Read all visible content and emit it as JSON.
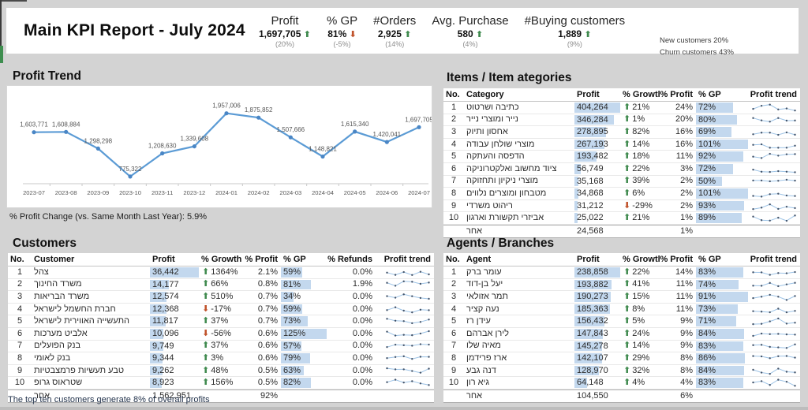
{
  "header": {
    "title": "Main KPI Report - July 2024",
    "kpis": [
      {
        "id": "profit",
        "label": "Profit",
        "value": "1,697,705",
        "delta": "(20%)",
        "dir": "up"
      },
      {
        "id": "gp",
        "label": "% GP",
        "value": "81%",
        "delta": "(-5%)",
        "dir": "down"
      },
      {
        "id": "orders",
        "label": "#Orders",
        "value": "2,925",
        "delta": "(14%)",
        "dir": "up"
      },
      {
        "id": "avg-purchase",
        "label": "Avg. Purchase",
        "value": "580",
        "delta": "(4%)",
        "dir": "up"
      },
      {
        "id": "buying-customers",
        "label": "#Buying customers",
        "value": "1,889",
        "delta": "(9%)",
        "dir": "up"
      }
    ],
    "extras": [
      "New customers 20%",
      "Churn customers 43%"
    ]
  },
  "chart_data": {
    "type": "line",
    "title": "Profit Trend",
    "x": [
      "2023-07",
      "2023-08",
      "2023-09",
      "2023-10",
      "2023-11",
      "2023-12",
      "2024-01",
      "2024-02",
      "2024-03",
      "2024-04",
      "2024-05",
      "2024-06",
      "2024-07"
    ],
    "values": [
      1603771,
      1608884,
      1298298,
      775322,
      1208630,
      1339608,
      1957006,
      1875852,
      1507666,
      1148821,
      1615340,
      1420041,
      1697705
    ],
    "ylim": [
      700000,
      2100000
    ],
    "grid": false,
    "legend": "none",
    "footnote": "% Profit Change (vs. Same Month Last Year): 5.9%"
  },
  "items_table": {
    "title": "Items / Item ategories",
    "columns": [
      "No.",
      "Category",
      "Profit",
      "% Growth",
      "% Profit",
      "% GP",
      "Profit trend"
    ],
    "rows": [
      {
        "no": "1",
        "name": "כתיבה ושרטוט",
        "profit": 404264,
        "profit_text": "404,264",
        "growth_dir": "up",
        "growth": "21%",
        "profit_pct": "24%",
        "gp": 72,
        "gp_text": "72%"
      },
      {
        "no": "2",
        "name": "נייר ומוצרי נייר",
        "profit": 346284,
        "profit_text": "346,284",
        "growth_dir": "up",
        "growth": "1%",
        "profit_pct": "20%",
        "gp": 80,
        "gp_text": "80%"
      },
      {
        "no": "3",
        "name": "אחסון ותיוק",
        "profit": 278895,
        "profit_text": "278,895",
        "growth_dir": "up",
        "growth": "82%",
        "profit_pct": "16%",
        "gp": 69,
        "gp_text": "69%"
      },
      {
        "no": "4",
        "name": "מוצרי שולחן עבודה",
        "profit": 267193,
        "profit_text": "267,193",
        "growth_dir": "up",
        "growth": "14%",
        "profit_pct": "16%",
        "gp": 101,
        "gp_text": "101%"
      },
      {
        "no": "5",
        "name": "הדפסה והעתקה",
        "profit": 193482,
        "profit_text": "193,482",
        "growth_dir": "up",
        "growth": "18%",
        "profit_pct": "11%",
        "gp": 92,
        "gp_text": "92%"
      },
      {
        "no": "6",
        "name": "ציוד מחשוב ואלקטרוניקה",
        "profit": 56749,
        "profit_text": "56,749",
        "growth_dir": "up",
        "growth": "22%",
        "profit_pct": "3%",
        "gp": 72,
        "gp_text": "72%"
      },
      {
        "no": "7",
        "name": "מוצרי ניקיון ותחזוקה",
        "profit": 35168,
        "profit_text": "35,168",
        "growth_dir": "up",
        "growth": "39%",
        "profit_pct": "2%",
        "gp": 50,
        "gp_text": "50%"
      },
      {
        "no": "8",
        "name": "מטבחון ומוצרים נלווים",
        "profit": 34868,
        "profit_text": "34,868",
        "growth_dir": "up",
        "growth": "6%",
        "profit_pct": "2%",
        "gp": 101,
        "gp_text": "101%"
      },
      {
        "no": "9",
        "name": "ריהוט משרדי",
        "profit": 31212,
        "profit_text": "31,212",
        "growth_dir": "down",
        "growth": "-29%",
        "profit_pct": "2%",
        "gp": 93,
        "gp_text": "93%"
      },
      {
        "no": "10",
        "name": "אביזרי תקשורת וארגון",
        "profit": 25022,
        "profit_text": "25,022",
        "growth_dir": "up",
        "growth": "21%",
        "profit_pct": "1%",
        "gp": 89,
        "gp_text": "89%"
      }
    ],
    "other_row": {
      "name": "אחר",
      "profit_text": "24,568",
      "profit_pct": "1%"
    }
  },
  "customers_table": {
    "title": "Customers",
    "columns": [
      "No.",
      "Customer",
      "Profit",
      "% Growth",
      "% Profit",
      "% GP",
      "% Refunds",
      "Profit trend"
    ],
    "rows": [
      {
        "no": "1",
        "name": "צהל",
        "profit": 36442,
        "profit_text": "36,442",
        "growth_dir": "up",
        "growth": "1364%",
        "profit_pct": "2.1%",
        "gp": 59,
        "gp_text": "59%",
        "refunds": "0.0%"
      },
      {
        "no": "2",
        "name": "משרד החינוך",
        "profit": 14177,
        "profit_text": "14,177",
        "growth_dir": "up",
        "growth": "66%",
        "profit_pct": "0.8%",
        "gp": 81,
        "gp_text": "81%",
        "refunds": "1.9%"
      },
      {
        "no": "3",
        "name": "משרד הבריאות",
        "profit": 12574,
        "profit_text": "12,574",
        "growth_dir": "up",
        "growth": "510%",
        "profit_pct": "0.7%",
        "gp": 34,
        "gp_text": "34%",
        "refunds": "0.0%"
      },
      {
        "no": "4",
        "name": "חברת החשמל לישראל",
        "profit": 12368,
        "profit_text": "12,368",
        "growth_dir": "down",
        "growth": "-17%",
        "profit_pct": "0.7%",
        "gp": 59,
        "gp_text": "59%",
        "refunds": "0.0%"
      },
      {
        "no": "5",
        "name": "התעשייה האווירית לישראל",
        "profit": 11817,
        "profit_text": "11,817",
        "growth_dir": "up",
        "growth": "37%",
        "profit_pct": "0.7%",
        "gp": 73,
        "gp_text": "73%",
        "refunds": "0.0%"
      },
      {
        "no": "6",
        "name": "אלביט מערכות",
        "profit": 10096,
        "profit_text": "10,096",
        "growth_dir": "down",
        "growth": "-56%",
        "profit_pct": "0.6%",
        "gp": 125,
        "gp_text": "125%",
        "refunds": "0.0%"
      },
      {
        "no": "7",
        "name": "בנק הפועלים",
        "profit": 9749,
        "profit_text": "9,749",
        "growth_dir": "up",
        "growth": "37%",
        "profit_pct": "0.6%",
        "gp": 57,
        "gp_text": "57%",
        "refunds": "0.0%"
      },
      {
        "no": "8",
        "name": "בנק לאומי",
        "profit": 9344,
        "profit_text": "9,344",
        "growth_dir": "up",
        "growth": "3%",
        "profit_pct": "0.6%",
        "gp": 79,
        "gp_text": "79%",
        "refunds": "0.0%"
      },
      {
        "no": "9",
        "name": "טבע תעשיות פרמצבטיות",
        "profit": 9262,
        "profit_text": "9,262",
        "growth_dir": "up",
        "growth": "48%",
        "profit_pct": "0.5%",
        "gp": 63,
        "gp_text": "63%",
        "refunds": "0.0%"
      },
      {
        "no": "10",
        "name": "שטראוס גרופ",
        "profit": 8923,
        "profit_text": "8,923",
        "growth_dir": "up",
        "growth": "156%",
        "profit_pct": "0.5%",
        "gp": 82,
        "gp_text": "82%",
        "refunds": "0.0%"
      }
    ],
    "other_row": {
      "name": "אחר",
      "profit_text": "1,562,951",
      "profit_pct": "92%"
    },
    "footnote": "The top ten customers generate 8% of overall profits"
  },
  "agents_table": {
    "title": "Agents / Branches",
    "columns": [
      "No.",
      "Agent",
      "Profit",
      "% Growth",
      "% Profit",
      "% GP",
      "Profit trend"
    ],
    "rows": [
      {
        "no": "1",
        "name": "עומר ברק",
        "profit": 238858,
        "profit_text": "238,858",
        "growth_dir": "up",
        "growth": "22%",
        "profit_pct": "14%",
        "gp": 83,
        "gp_text": "83%"
      },
      {
        "no": "2",
        "name": "יעל בן-דוד",
        "profit": 193882,
        "profit_text": "193,882",
        "growth_dir": "up",
        "growth": "41%",
        "profit_pct": "11%",
        "gp": 74,
        "gp_text": "74%"
      },
      {
        "no": "3",
        "name": "תמר אזולאי",
        "profit": 190273,
        "profit_text": "190,273",
        "growth_dir": "up",
        "growth": "15%",
        "profit_pct": "11%",
        "gp": 91,
        "gp_text": "91%"
      },
      {
        "no": "4",
        "name": "נעה קציר",
        "profit": 185363,
        "profit_text": "185,363",
        "growth_dir": "up",
        "growth": "8%",
        "profit_pct": "11%",
        "gp": 73,
        "gp_text": "73%"
      },
      {
        "no": "5",
        "name": "עידן רז",
        "profit": 156432,
        "profit_text": "156,432",
        "growth_dir": "up",
        "growth": "5%",
        "profit_pct": "9%",
        "gp": 71,
        "gp_text": "71%"
      },
      {
        "no": "6",
        "name": "לירן אברהם",
        "profit": 147843,
        "profit_text": "147,843",
        "growth_dir": "up",
        "growth": "24%",
        "profit_pct": "9%",
        "gp": 84,
        "gp_text": "84%"
      },
      {
        "no": "7",
        "name": "מאיה שלו",
        "profit": 145278,
        "profit_text": "145,278",
        "growth_dir": "up",
        "growth": "14%",
        "profit_pct": "9%",
        "gp": 83,
        "gp_text": "83%"
      },
      {
        "no": "8",
        "name": "ארז פרידמן",
        "profit": 142107,
        "profit_text": "142,107",
        "growth_dir": "up",
        "growth": "29%",
        "profit_pct": "8%",
        "gp": 86,
        "gp_text": "86%"
      },
      {
        "no": "9",
        "name": "דנה גבע",
        "profit": 128970,
        "profit_text": "128,970",
        "growth_dir": "up",
        "growth": "32%",
        "profit_pct": "8%",
        "gp": 84,
        "gp_text": "84%"
      },
      {
        "no": "10",
        "name": "גיא רון",
        "profit": 64148,
        "profit_text": "64,148",
        "growth_dir": "up",
        "growth": "4%",
        "profit_pct": "4%",
        "gp": 83,
        "gp_text": "83%"
      }
    ],
    "other_row": {
      "name": "אחר",
      "profit_text": "104,550",
      "profit_pct": "6%"
    }
  },
  "colors": {
    "up": "#3f8a4e",
    "down": "#c0522a",
    "bar": "#c3d8ee",
    "chart_line": "#5b9bd5",
    "chart_marker": "#4a86c5",
    "spark_line": "#9dc3e6",
    "spark_marker": "#44546a",
    "background": "#d3d3d3",
    "label_gray": "#595959"
  }
}
